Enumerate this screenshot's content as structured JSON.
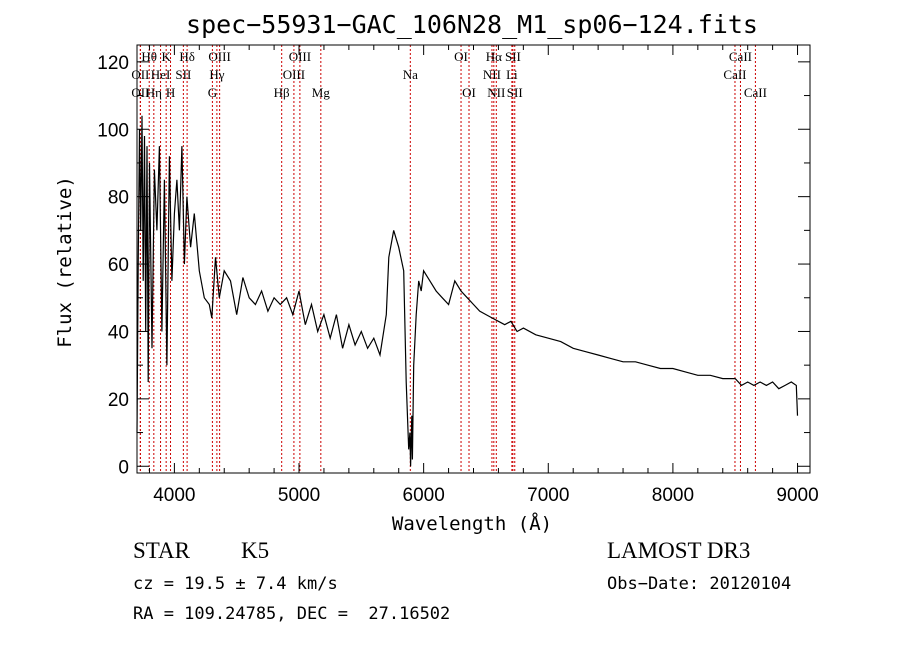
{
  "chart_data": {
    "type": "line",
    "title": "spec−55931−GAC_106N28_M1_sp06−124.fits",
    "xlabel": "Wavelength (Å)",
    "ylabel": "Flux (relative)",
    "xlim": [
      3700,
      9100
    ],
    "ylim": [
      -2,
      125
    ],
    "xticks": [
      4000,
      5000,
      6000,
      7000,
      8000,
      9000
    ],
    "yticks": [
      0,
      20,
      40,
      60,
      80,
      100,
      120
    ],
    "series": [
      {
        "name": "spectrum",
        "x": [
          3700,
          3710,
          3720,
          3730,
          3740,
          3750,
          3760,
          3770,
          3780,
          3790,
          3800,
          3820,
          3840,
          3860,
          3880,
          3900,
          3920,
          3940,
          3960,
          3980,
          4000,
          4020,
          4040,
          4060,
          4080,
          4100,
          4130,
          4160,
          4200,
          4240,
          4280,
          4300,
          4330,
          4360,
          4400,
          4450,
          4500,
          4550,
          4600,
          4650,
          4700,
          4750,
          4800,
          4850,
          4900,
          4950,
          5000,
          5050,
          5100,
          5150,
          5200,
          5250,
          5300,
          5350,
          5400,
          5450,
          5500,
          5550,
          5600,
          5650,
          5700,
          5720,
          5760,
          5800,
          5840,
          5860,
          5880,
          5890,
          5895,
          5900,
          5905,
          5910,
          5920,
          5940,
          5960,
          5980,
          6000,
          6050,
          6100,
          6150,
          6200,
          6250,
          6300,
          6350,
          6400,
          6450,
          6500,
          6550,
          6600,
          6650,
          6700,
          6750,
          6800,
          6900,
          7000,
          7100,
          7200,
          7300,
          7400,
          7500,
          7600,
          7700,
          7800,
          7900,
          8000,
          8100,
          8200,
          8300,
          8400,
          8500,
          8550,
          8600,
          8650,
          8700,
          8750,
          8800,
          8850,
          8900,
          8950,
          8990,
          9000
        ],
        "y": [
          10,
          60,
          100,
          70,
          104,
          55,
          98,
          40,
          95,
          25,
          90,
          35,
          88,
          70,
          95,
          40,
          85,
          30,
          92,
          55,
          75,
          85,
          70,
          95,
          60,
          80,
          65,
          75,
          58,
          50,
          48,
          44,
          62,
          50,
          58,
          55,
          45,
          56,
          50,
          48,
          52,
          46,
          50,
          48,
          50,
          45,
          52,
          42,
          48,
          40,
          45,
          38,
          45,
          35,
          42,
          36,
          40,
          35,
          38,
          33,
          45,
          62,
          70,
          65,
          58,
          25,
          5,
          10,
          0,
          8,
          15,
          2,
          30,
          45,
          55,
          52,
          58,
          55,
          52,
          50,
          48,
          55,
          52,
          50,
          48,
          46,
          45,
          44,
          43,
          42,
          43,
          40,
          41,
          39,
          38,
          37,
          35,
          34,
          33,
          32,
          31,
          31,
          30,
          29,
          29,
          28,
          27,
          27,
          26,
          26,
          24,
          25,
          24,
          25,
          24,
          25,
          23,
          24,
          25,
          24,
          15
        ]
      }
    ],
    "line_ids": [
      {
        "label": "Hθ",
        "x": 3798,
        "row": 0
      },
      {
        "label": "K",
        "x": 3934,
        "row": 0
      },
      {
        "label": "Hδ",
        "x": 4102,
        "row": 0
      },
      {
        "label": "OIII",
        "x": 4363,
        "row": 0
      },
      {
        "label": "OIII",
        "x": 5007,
        "row": 0
      },
      {
        "label": "OI",
        "x": 6300,
        "row": 0
      },
      {
        "label": "Hα",
        "x": 6563,
        "row": 0
      },
      {
        "label": "SII",
        "x": 6716,
        "row": 0
      },
      {
        "label": "CaII",
        "x": 8542,
        "row": 0
      },
      {
        "label": "OII",
        "x": 3727,
        "row": 1
      },
      {
        "label": "HeI",
        "x": 3889,
        "row": 1
      },
      {
        "label": "SII",
        "x": 4072,
        "row": 1
      },
      {
        "label": "Hγ",
        "x": 4341,
        "row": 1
      },
      {
        "label": "OIII",
        "x": 4959,
        "row": 1
      },
      {
        "label": "Na",
        "x": 5893,
        "row": 1
      },
      {
        "label": "NII",
        "x": 6548,
        "row": 1
      },
      {
        "label": "Li",
        "x": 6708,
        "row": 1
      },
      {
        "label": "CaII",
        "x": 8498,
        "row": 1
      },
      {
        "label": "OII",
        "x": 3727,
        "row": 2
      },
      {
        "label": "Hη",
        "x": 3835,
        "row": 2
      },
      {
        "label": "H",
        "x": 3969,
        "row": 2
      },
      {
        "label": "G",
        "x": 4305,
        "row": 2
      },
      {
        "label": "Hβ",
        "x": 4861,
        "row": 2
      },
      {
        "label": "Mg",
        "x": 5175,
        "row": 2
      },
      {
        "label": "OI",
        "x": 6364,
        "row": 2
      },
      {
        "label": "NII",
        "x": 6583,
        "row": 2
      },
      {
        "label": "SII",
        "x": 6731,
        "row": 2
      },
      {
        "label": "CaII",
        "x": 8662,
        "row": 2
      }
    ],
    "line_marker_color": "#cc0000",
    "grid": false
  },
  "info": {
    "object_class": "STAR",
    "subclass": "K5",
    "survey": "LAMOST DR3",
    "redshift": "cz = 19.5 ± 7.4 km/s",
    "obs_date": "Obs−Date: 20120104",
    "coords": "RA = 109.24785, DEC =  27.16502"
  }
}
